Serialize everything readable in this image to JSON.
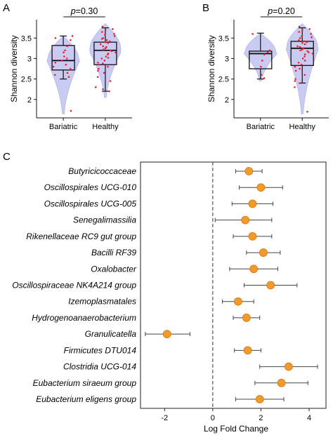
{
  "panels": {
    "A": "A",
    "B": "B",
    "C": "C"
  },
  "colors": {
    "violin": "#c9cbf3",
    "violin_edge": "#b3b6ee",
    "jitter": "#e8222b",
    "point": "#f39a2a",
    "point_edge": "#d27a12",
    "errorbar": "#444444",
    "zero_line": "#444444"
  },
  "chart_data": [
    {
      "type": "box",
      "panel": "A",
      "ylabel": "Shannon diversity",
      "yticks": [
        2,
        2.5,
        3,
        3.5
      ],
      "ylim": [
        1.55,
        3.95
      ],
      "categories": [
        "Bariatric",
        "Healthy"
      ],
      "p_label": "p",
      "p_value": "=0.30",
      "groups": [
        {
          "name": "Bariatric",
          "min": 2.5,
          "q1": 2.72,
          "median": 2.95,
          "q3": 3.32,
          "max": 3.55,
          "violin_top": 3.55,
          "violin_bottom": 1.65,
          "points": [
            3.5,
            3.55,
            3.45,
            3.3,
            3.2,
            3.15,
            3.05,
            3.0,
            2.95,
            2.9,
            2.85,
            2.8,
            2.75,
            2.72,
            2.65,
            2.6,
            2.55,
            1.72
          ]
        },
        {
          "name": "Healthy",
          "min": 2.2,
          "q1": 2.85,
          "median": 3.2,
          "q3": 3.4,
          "max": 3.75,
          "violin_top": 3.85,
          "violin_bottom": 2.05,
          "points": [
            3.78,
            3.72,
            3.7,
            3.65,
            3.6,
            3.58,
            3.55,
            3.5,
            3.48,
            3.45,
            3.42,
            3.4,
            3.38,
            3.35,
            3.3,
            3.28,
            3.25,
            3.22,
            3.2,
            3.18,
            3.15,
            3.12,
            3.1,
            3.05,
            3.02,
            3.0,
            2.95,
            2.9,
            2.88,
            2.85,
            2.8,
            2.75,
            2.7,
            2.65,
            2.55,
            2.45,
            2.3,
            2.2,
            2.25
          ]
        }
      ]
    },
    {
      "type": "box",
      "panel": "B",
      "ylabel": "Shannon diversity",
      "yticks": [
        2,
        2.5,
        3,
        3.5
      ],
      "ylim": [
        1.55,
        3.95
      ],
      "categories": [
        "Bariatric",
        "Healthy"
      ],
      "p_label": "p",
      "p_value": "=0.20",
      "groups": [
        {
          "name": "Bariatric",
          "min": 2.5,
          "q1": 2.75,
          "median": 3.12,
          "q3": 3.18,
          "max": 3.62,
          "violin_top": 3.62,
          "violin_bottom": 2.45,
          "points": [
            3.6,
            3.2,
            3.15,
            3.1,
            2.95,
            2.8,
            2.6,
            2.52
          ]
        },
        {
          "name": "Healthy",
          "min": 2.4,
          "q1": 2.83,
          "median": 3.25,
          "q3": 3.42,
          "max": 3.75,
          "violin_top": 3.85,
          "violin_bottom": 1.65,
          "points": [
            3.78,
            3.72,
            3.7,
            3.65,
            3.6,
            3.55,
            3.52,
            3.5,
            3.45,
            3.42,
            3.4,
            3.38,
            3.35,
            3.3,
            3.28,
            3.25,
            3.22,
            3.2,
            3.18,
            3.15,
            3.12,
            3.1,
            3.05,
            3.0,
            2.95,
            2.9,
            2.85,
            2.8,
            2.75,
            2.7,
            2.6,
            2.5,
            2.45,
            2.4,
            2.3,
            1.7
          ]
        }
      ]
    },
    {
      "type": "forest",
      "panel": "C",
      "xlabel": "Log Fold Change",
      "xticks": [
        -2,
        0,
        2,
        4
      ],
      "xlim": [
        -3.0,
        4.7
      ],
      "rows": [
        {
          "label": "Butyricicoccaceae",
          "lfc": 1.5,
          "lo": 0.95,
          "hi": 2.05
        },
        {
          "label": "Oscillospirales UCG-010",
          "lfc": 2.0,
          "lo": 1.1,
          "hi": 2.9
        },
        {
          "label": "Oscillospirales UCG-005",
          "lfc": 1.65,
          "lo": 0.8,
          "hi": 2.5
        },
        {
          "label": "Senegalimassilia",
          "lfc": 1.35,
          "lo": 0.1,
          "hi": 2.45
        },
        {
          "label": "Rikenellaceae RC9 gut group",
          "lfc": 1.65,
          "lo": 0.85,
          "hi": 2.45
        },
        {
          "label": "Bacilli RF39",
          "lfc": 2.1,
          "lo": 1.4,
          "hi": 2.8
        },
        {
          "label": "Oxalobacter",
          "lfc": 1.7,
          "lo": 0.7,
          "hi": 2.7
        },
        {
          "label": "Oscillospiraceae NK4A214 group",
          "lfc": 2.4,
          "lo": 1.3,
          "hi": 3.5
        },
        {
          "label": "Izemoplasmatales",
          "lfc": 1.05,
          "lo": 0.4,
          "hi": 1.7
        },
        {
          "label": "Hydrogenoanaerobacterium",
          "lfc": 1.4,
          "lo": 0.85,
          "hi": 1.95
        },
        {
          "label": "Granulicatella",
          "lfc": -1.9,
          "lo": -2.8,
          "hi": -0.95
        },
        {
          "label": "Firmicutes DTU014",
          "lfc": 1.45,
          "lo": 0.9,
          "hi": 2.0
        },
        {
          "label": "Clostridia UCG-014",
          "lfc": 3.15,
          "lo": 1.95,
          "hi": 4.35
        },
        {
          "label": "Eubacterium siraeum group",
          "lfc": 2.85,
          "lo": 1.75,
          "hi": 3.95
        },
        {
          "label": "Eubacterium eligens group",
          "lfc": 1.95,
          "lo": 0.95,
          "hi": 2.95
        }
      ]
    }
  ]
}
